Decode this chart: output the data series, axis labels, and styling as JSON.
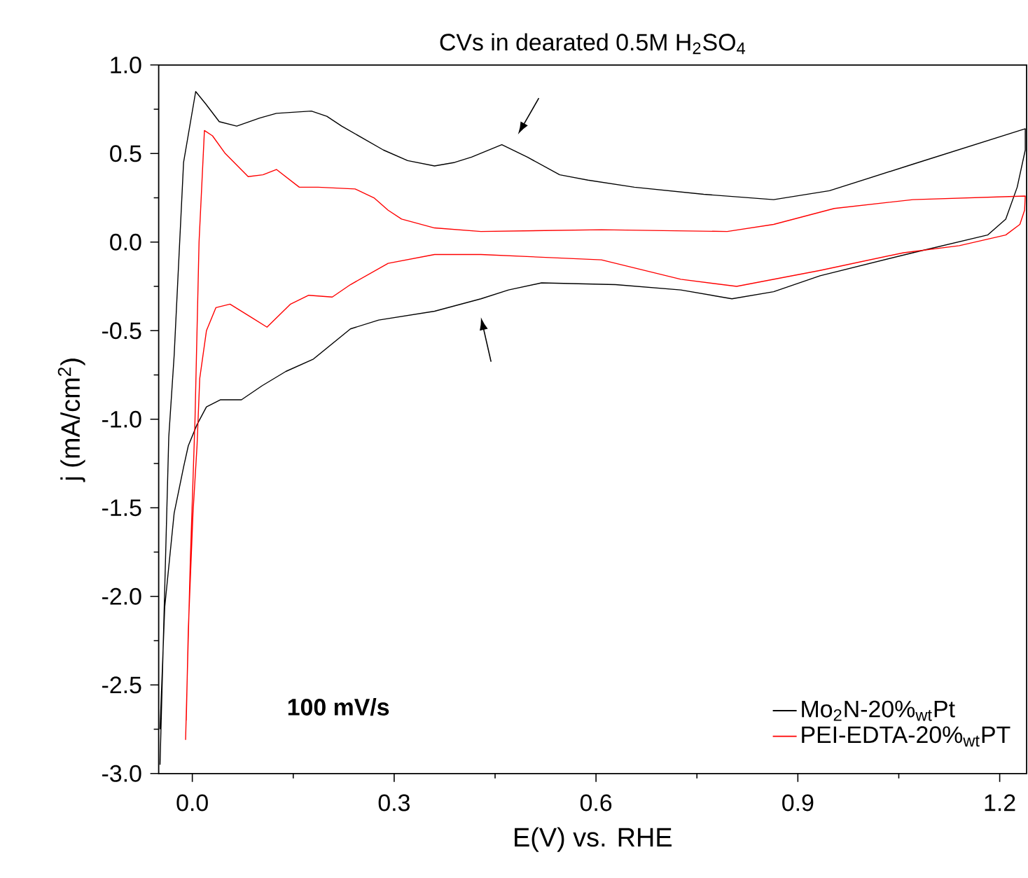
{
  "chart_data": {
    "type": "line",
    "title": "CVs in dearated 0.5M H$_{2}$SO$_{4}$",
    "xlabel": "E(V) vs. RHE",
    "ylabel": "j (mA/cm$^{2}$)",
    "xlim": [
      -0.05,
      1.24
    ],
    "ylim": [
      -3.0,
      1.0
    ],
    "xticks": [
      {
        "value": 0,
        "label": "0.0"
      },
      {
        "value": 0.3,
        "label": "0.3"
      },
      {
        "value": 0.6,
        "label": "0.6"
      },
      {
        "value": 0.9,
        "label": "0.9"
      },
      {
        "value": 1.2,
        "label": "1.2"
      }
    ],
    "yticks": [
      {
        "value": -3,
        "label": "-3.0"
      },
      {
        "value": -2.5,
        "label": "-2.5"
      },
      {
        "value": -2,
        "label": "-2.0"
      },
      {
        "value": -1.5,
        "label": "-1.5"
      },
      {
        "value": -1,
        "label": "-1.0"
      },
      {
        "value": -0.5,
        "label": "-0.5"
      },
      {
        "value": 0,
        "label": "0.0"
      },
      {
        "value": 0.5,
        "label": "0.5"
      },
      {
        "value": 1,
        "label": "1.0"
      }
    ],
    "legend": "bottom right",
    "marker": "none",
    "line_style": "solid",
    "grid": false,
    "annotations": [
      "100 mV/s"
    ],
    "series": [
      {
        "name": "Mo$_{2}$N-20%$_{wt}$Pt",
        "color": "#000000",
        "x": [
          -0.048,
          -0.035,
          -0.027,
          -0.013,
          0.005,
          0.02,
          0.04,
          0.066,
          0.1,
          0.125,
          0.177,
          0.2,
          0.222,
          0.284,
          0.32,
          0.36,
          0.39,
          0.415,
          0.46,
          0.498,
          0.546,
          0.588,
          0.657,
          0.76,
          0.864,
          0.947,
          1.071,
          1.238,
          1.238,
          1.226,
          1.209,
          1.182,
          1.071,
          0.933,
          0.864,
          0.802,
          0.726,
          0.629,
          0.519,
          0.47,
          0.429,
          0.36,
          0.277,
          0.235,
          0.18,
          0.139,
          0.104,
          0.073,
          0.042,
          0.021,
          0.007,
          -0.006,
          -0.013,
          -0.027,
          -0.041,
          -0.048
        ],
        "values": [
          -2.95,
          -1.1,
          -0.64,
          0.45,
          0.85,
          0.78,
          0.68,
          0.655,
          0.7,
          0.727,
          0.74,
          0.71,
          0.655,
          0.52,
          0.46,
          0.43,
          0.45,
          0.48,
          0.55,
          0.48,
          0.38,
          0.35,
          0.31,
          0.27,
          0.24,
          0.29,
          0.44,
          0.64,
          0.52,
          0.31,
          0.13,
          0.04,
          -0.06,
          -0.19,
          -0.28,
          -0.32,
          -0.27,
          -0.24,
          -0.23,
          -0.27,
          -0.32,
          -0.39,
          -0.44,
          -0.49,
          -0.66,
          -0.73,
          -0.81,
          -0.89,
          -0.89,
          -0.93,
          -1.03,
          -1.15,
          -1.27,
          -1.53,
          -2.06,
          -2.75
        ]
      },
      {
        "name": "PEI-EDTA-20%$_{wt}$PT",
        "color": "#ff0000",
        "x": [
          -0.01,
          -0.003,
          0.004,
          0.01,
          0.018,
          0.03,
          0.049,
          0.083,
          0.105,
          0.125,
          0.159,
          0.187,
          0.242,
          0.27,
          0.291,
          0.311,
          0.36,
          0.429,
          0.608,
          0.795,
          0.864,
          0.954,
          1.071,
          1.238,
          1.237,
          1.23,
          1.209,
          1.14,
          1.057,
          0.933,
          0.809,
          0.726,
          0.608,
          0.429,
          0.36,
          0.291,
          0.235,
          0.208,
          0.173,
          0.146,
          0.111,
          0.09,
          0.056,
          0.035,
          0.021,
          0.011,
          0.007,
          0.001,
          -0.006,
          -0.009
        ],
        "values": [
          -2.81,
          -1.8,
          -1.0,
          0.0,
          0.63,
          0.6,
          0.5,
          0.37,
          0.38,
          0.41,
          0.31,
          0.31,
          0.3,
          0.25,
          0.18,
          0.13,
          0.08,
          0.06,
          0.07,
          0.06,
          0.1,
          0.19,
          0.24,
          0.26,
          0.18,
          0.1,
          0.04,
          -0.02,
          -0.06,
          -0.16,
          -0.25,
          -0.21,
          -0.1,
          -0.07,
          -0.07,
          -0.12,
          -0.24,
          -0.31,
          -0.3,
          -0.35,
          -0.48,
          -0.43,
          -0.35,
          -0.37,
          -0.5,
          -0.77,
          -1.15,
          -1.53,
          -2.19,
          -2.7
        ]
      }
    ]
  }
}
